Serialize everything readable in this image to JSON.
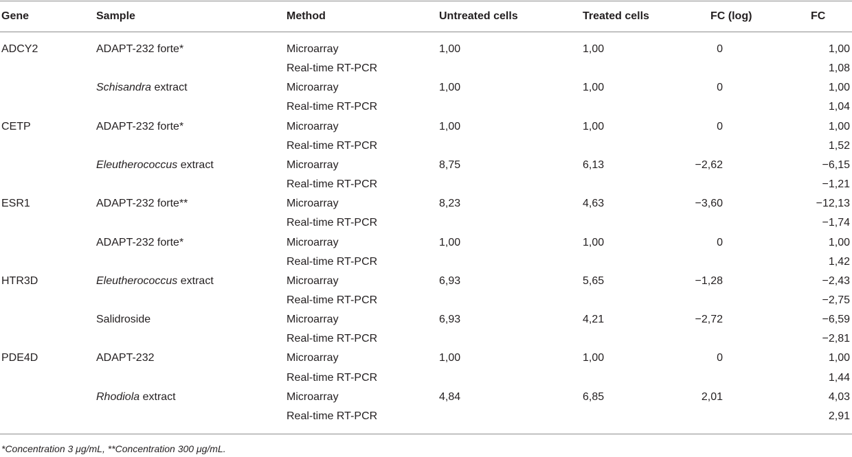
{
  "columns": {
    "gene": "Gene",
    "sample": "Sample",
    "method": "Method",
    "untreated": "Untreated cells",
    "treated": "Treated cells",
    "fc_log": "FC (log)",
    "fc": "FC"
  },
  "rows": [
    {
      "gene": "ADCY2",
      "sample_pre": "",
      "sample_italic": "",
      "sample_post": "ADAPT-232 forte*",
      "method": "Microarray",
      "untreated": "1,00",
      "treated": "1,00",
      "fc_log": "0",
      "fc": "1,00"
    },
    {
      "gene": "",
      "sample_pre": "",
      "sample_italic": "",
      "sample_post": "",
      "method": "Real-time RT-PCR",
      "untreated": "",
      "treated": "",
      "fc_log": "",
      "fc": "1,08"
    },
    {
      "gene": "",
      "sample_pre": "",
      "sample_italic": "Schisandra",
      "sample_post": " extract",
      "method": "Microarray",
      "untreated": "1,00",
      "treated": "1,00",
      "fc_log": "0",
      "fc": "1,00"
    },
    {
      "gene": "",
      "sample_pre": "",
      "sample_italic": "",
      "sample_post": "",
      "method": "Real-time RT-PCR",
      "untreated": "",
      "treated": "",
      "fc_log": "",
      "fc": "1,04"
    },
    {
      "gene": "CETP",
      "sample_pre": "",
      "sample_italic": "",
      "sample_post": "ADAPT-232 forte*",
      "method": "Microarray",
      "untreated": "1,00",
      "treated": "1,00",
      "fc_log": "0",
      "fc": "1,00"
    },
    {
      "gene": "",
      "sample_pre": "",
      "sample_italic": "",
      "sample_post": "",
      "method": "Real-time RT-PCR",
      "untreated": "",
      "treated": "",
      "fc_log": "",
      "fc": "1,52"
    },
    {
      "gene": "",
      "sample_pre": "",
      "sample_italic": "Eleutherococcus",
      "sample_post": " extract",
      "method": "Microarray",
      "untreated": "8,75",
      "treated": "6,13",
      "fc_log": "−2,62",
      "fc": "−6,15"
    },
    {
      "gene": "",
      "sample_pre": "",
      "sample_italic": "",
      "sample_post": "",
      "method": "Real-time RT-PCR",
      "untreated": "",
      "treated": "",
      "fc_log": "",
      "fc": "−1,21"
    },
    {
      "gene": "ESR1",
      "sample_pre": "",
      "sample_italic": "",
      "sample_post": "ADAPT-232 forte**",
      "method": "Microarray",
      "untreated": "8,23",
      "treated": "4,63",
      "fc_log": "−3,60",
      "fc": "−12,13"
    },
    {
      "gene": "",
      "sample_pre": "",
      "sample_italic": "",
      "sample_post": "",
      "method": "Real-time RT-PCR",
      "untreated": "",
      "treated": "",
      "fc_log": "",
      "fc": "−1,74"
    },
    {
      "gene": "",
      "sample_pre": "",
      "sample_italic": "",
      "sample_post": "ADAPT-232 forte*",
      "method": "Microarray",
      "untreated": "1,00",
      "treated": "1,00",
      "fc_log": "0",
      "fc": "1,00"
    },
    {
      "gene": "",
      "sample_pre": "",
      "sample_italic": "",
      "sample_post": "",
      "method": "Real-time RT-PCR",
      "untreated": "",
      "treated": "",
      "fc_log": "",
      "fc": "1,42"
    },
    {
      "gene": "HTR3D",
      "sample_pre": "",
      "sample_italic": "Eleutherococcus",
      "sample_post": " extract",
      "method": "Microarray",
      "untreated": "6,93",
      "treated": "5,65",
      "fc_log": "−1,28",
      "fc": "−2,43"
    },
    {
      "gene": "",
      "sample_pre": "",
      "sample_italic": "",
      "sample_post": "",
      "method": "Real-time RT-PCR",
      "untreated": "",
      "treated": "",
      "fc_log": "",
      "fc": "−2,75"
    },
    {
      "gene": "",
      "sample_pre": "",
      "sample_italic": "",
      "sample_post": "Salidroside",
      "method": "Microarray",
      "untreated": "6,93",
      "treated": "4,21",
      "fc_log": "−2,72",
      "fc": "−6,59"
    },
    {
      "gene": "",
      "sample_pre": "",
      "sample_italic": "",
      "sample_post": "",
      "method": "Real-time RT-PCR",
      "untreated": "",
      "treated": "",
      "fc_log": "",
      "fc": "−2,81"
    },
    {
      "gene": "PDE4D",
      "sample_pre": "",
      "sample_italic": "",
      "sample_post": "ADAPT-232",
      "method": "Microarray",
      "untreated": "1,00",
      "treated": "1,00",
      "fc_log": "0",
      "fc": "1,00"
    },
    {
      "gene": "",
      "sample_pre": "",
      "sample_italic": "",
      "sample_post": "",
      "method": "Real-time RT-PCR",
      "untreated": "",
      "treated": "",
      "fc_log": "",
      "fc": "1,44"
    },
    {
      "gene": "",
      "sample_pre": "",
      "sample_italic": "Rhodiola",
      "sample_post": " extract",
      "method": "Microarray",
      "untreated": "4,84",
      "treated": "6,85",
      "fc_log": "2,01",
      "fc": "4,03"
    },
    {
      "gene": "",
      "sample_pre": "",
      "sample_italic": "",
      "sample_post": "",
      "method": "Real-time RT-PCR",
      "untreated": "",
      "treated": "",
      "fc_log": "",
      "fc": "2,91"
    }
  ],
  "footnote": "*Concentration 3 μg/mL, **Concentration 300 μg/mL."
}
